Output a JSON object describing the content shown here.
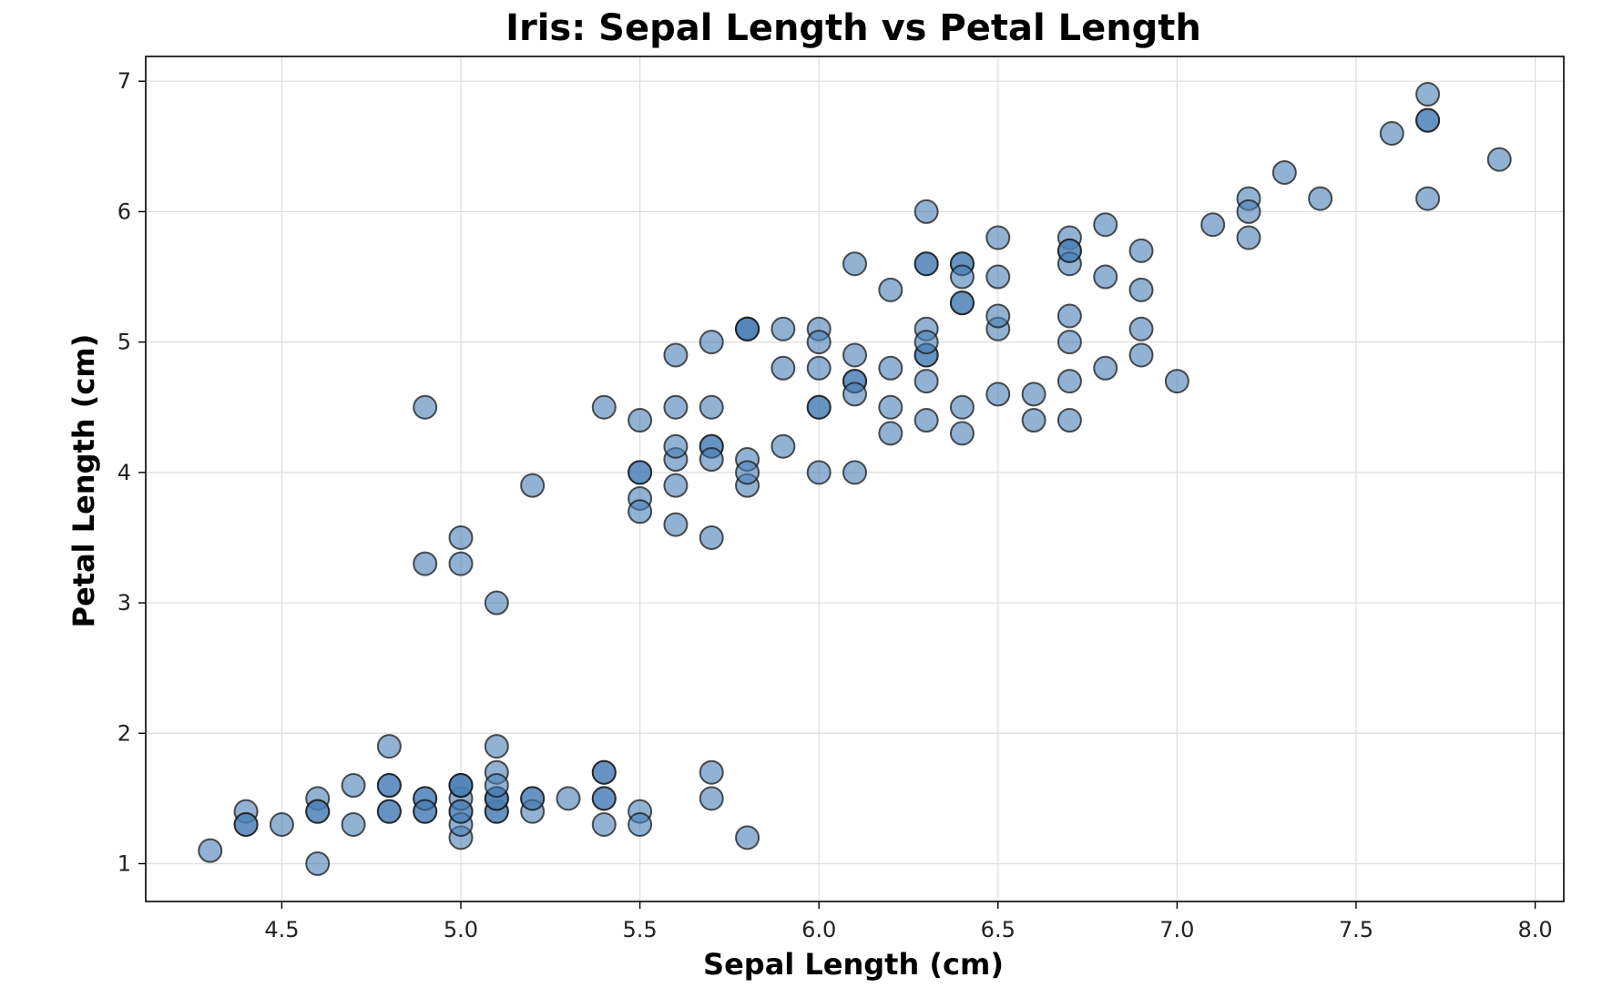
{
  "chart_data": {
    "type": "scatter",
    "title": "Iris: Sepal Length vs Petal Length",
    "xlabel": "Sepal Length (cm)",
    "ylabel": "Petal Length (cm)",
    "xlim": [
      4.12,
      8.08
    ],
    "ylim": [
      0.71,
      7.19
    ],
    "xticks": [
      4.5,
      5.0,
      5.5,
      6.0,
      6.5,
      7.0,
      7.5,
      8.0
    ],
    "xtick_labels": [
      "4.5",
      "5.0",
      "5.5",
      "6.0",
      "6.5",
      "7.0",
      "7.5",
      "8.0"
    ],
    "yticks": [
      1,
      2,
      3,
      4,
      5,
      6,
      7
    ],
    "ytick_labels": [
      "1",
      "2",
      "3",
      "4",
      "5",
      "6",
      "7"
    ],
    "grid": true,
    "legend": "none",
    "marker_color": "#4a7fb5",
    "marker_edge_color": "#1a1a1a",
    "marker_alpha": 0.6,
    "points": [
      [
        5.1,
        1.4
      ],
      [
        4.9,
        1.4
      ],
      [
        4.7,
        1.3
      ],
      [
        4.6,
        1.5
      ],
      [
        5.0,
        1.4
      ],
      [
        5.4,
        1.7
      ],
      [
        4.6,
        1.4
      ],
      [
        5.0,
        1.5
      ],
      [
        4.4,
        1.4
      ],
      [
        4.9,
        1.5
      ],
      [
        5.4,
        1.5
      ],
      [
        4.8,
        1.6
      ],
      [
        4.8,
        1.4
      ],
      [
        4.3,
        1.1
      ],
      [
        5.8,
        1.2
      ],
      [
        5.7,
        1.5
      ],
      [
        5.4,
        1.3
      ],
      [
        5.1,
        1.4
      ],
      [
        5.7,
        1.7
      ],
      [
        5.1,
        1.5
      ],
      [
        5.4,
        1.7
      ],
      [
        5.1,
        1.5
      ],
      [
        4.6,
        1.0
      ],
      [
        5.1,
        1.7
      ],
      [
        4.8,
        1.9
      ],
      [
        5.0,
        1.6
      ],
      [
        5.0,
        1.6
      ],
      [
        5.2,
        1.5
      ],
      [
        5.2,
        1.4
      ],
      [
        4.7,
        1.6
      ],
      [
        4.8,
        1.6
      ],
      [
        5.4,
        1.5
      ],
      [
        5.2,
        1.5
      ],
      [
        5.5,
        1.4
      ],
      [
        4.9,
        1.5
      ],
      [
        5.0,
        1.2
      ],
      [
        5.5,
        1.3
      ],
      [
        4.9,
        1.4
      ],
      [
        4.4,
        1.3
      ],
      [
        5.1,
        1.5
      ],
      [
        5.0,
        1.3
      ],
      [
        4.5,
        1.3
      ],
      [
        4.4,
        1.3
      ],
      [
        5.0,
        1.6
      ],
      [
        5.1,
        1.9
      ],
      [
        4.8,
        1.4
      ],
      [
        5.1,
        1.6
      ],
      [
        4.6,
        1.4
      ],
      [
        5.3,
        1.5
      ],
      [
        5.0,
        1.4
      ],
      [
        7.0,
        4.7
      ],
      [
        6.4,
        4.5
      ],
      [
        6.9,
        4.9
      ],
      [
        5.5,
        4.0
      ],
      [
        6.5,
        4.6
      ],
      [
        5.7,
        4.5
      ],
      [
        6.3,
        4.7
      ],
      [
        4.9,
        3.3
      ],
      [
        6.6,
        4.6
      ],
      [
        5.2,
        3.9
      ],
      [
        5.0,
        3.5
      ],
      [
        5.9,
        4.2
      ],
      [
        6.0,
        4.0
      ],
      [
        6.1,
        4.7
      ],
      [
        5.6,
        3.6
      ],
      [
        6.7,
        4.4
      ],
      [
        5.6,
        4.5
      ],
      [
        5.8,
        4.1
      ],
      [
        6.2,
        4.5
      ],
      [
        5.6,
        3.9
      ],
      [
        5.9,
        4.8
      ],
      [
        6.1,
        4.0
      ],
      [
        6.3,
        4.9
      ],
      [
        6.1,
        4.7
      ],
      [
        6.4,
        4.3
      ],
      [
        6.6,
        4.4
      ],
      [
        6.8,
        4.8
      ],
      [
        6.7,
        5.0
      ],
      [
        6.0,
        4.5
      ],
      [
        5.7,
        3.5
      ],
      [
        5.5,
        3.8
      ],
      [
        5.5,
        3.7
      ],
      [
        5.8,
        3.9
      ],
      [
        6.0,
        5.1
      ],
      [
        5.4,
        4.5
      ],
      [
        6.0,
        4.5
      ],
      [
        6.7,
        4.7
      ],
      [
        6.3,
        4.4
      ],
      [
        5.6,
        4.1
      ],
      [
        5.5,
        4.0
      ],
      [
        5.5,
        4.4
      ],
      [
        6.1,
        4.6
      ],
      [
        5.8,
        4.0
      ],
      [
        5.0,
        3.3
      ],
      [
        5.6,
        4.2
      ],
      [
        5.7,
        4.2
      ],
      [
        5.7,
        4.2
      ],
      [
        6.2,
        4.3
      ],
      [
        5.1,
        3.0
      ],
      [
        5.7,
        4.1
      ],
      [
        6.3,
        6.0
      ],
      [
        5.8,
        5.1
      ],
      [
        7.1,
        5.9
      ],
      [
        6.3,
        5.6
      ],
      [
        6.5,
        5.8
      ],
      [
        7.6,
        6.6
      ],
      [
        4.9,
        4.5
      ],
      [
        7.3,
        6.3
      ],
      [
        6.7,
        5.8
      ],
      [
        7.2,
        6.1
      ],
      [
        6.5,
        5.1
      ],
      [
        6.4,
        5.3
      ],
      [
        6.8,
        5.5
      ],
      [
        5.7,
        5.0
      ],
      [
        5.8,
        5.1
      ],
      [
        6.4,
        5.3
      ],
      [
        6.5,
        5.5
      ],
      [
        7.7,
        6.7
      ],
      [
        7.7,
        6.9
      ],
      [
        6.0,
        5.0
      ],
      [
        6.9,
        5.7
      ],
      [
        5.6,
        4.9
      ],
      [
        7.7,
        6.7
      ],
      [
        6.3,
        4.9
      ],
      [
        6.7,
        5.7
      ],
      [
        7.2,
        6.0
      ],
      [
        6.2,
        4.8
      ],
      [
        6.1,
        4.9
      ],
      [
        6.4,
        5.6
      ],
      [
        7.2,
        5.8
      ],
      [
        7.4,
        6.1
      ],
      [
        7.9,
        6.4
      ],
      [
        6.4,
        5.6
      ],
      [
        6.3,
        5.1
      ],
      [
        6.1,
        5.6
      ],
      [
        7.7,
        6.1
      ],
      [
        6.3,
        5.6
      ],
      [
        6.4,
        5.5
      ],
      [
        6.0,
        4.8
      ],
      [
        6.9,
        5.4
      ],
      [
        6.7,
        5.6
      ],
      [
        6.9,
        5.1
      ],
      [
        5.8,
        5.1
      ],
      [
        6.8,
        5.9
      ],
      [
        6.7,
        5.7
      ],
      [
        6.7,
        5.2
      ],
      [
        6.3,
        5.0
      ],
      [
        6.5,
        5.2
      ],
      [
        6.2,
        5.4
      ],
      [
        5.9,
        5.1
      ]
    ]
  }
}
